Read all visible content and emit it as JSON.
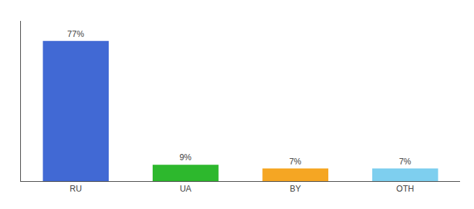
{
  "chart_data": {
    "type": "bar",
    "categories": [
      "RU",
      "UA",
      "BY",
      "OTH"
    ],
    "values": [
      77,
      9,
      7,
      7
    ],
    "value_labels": [
      "77%",
      "9%",
      "7%",
      "7%"
    ],
    "colors": [
      "#4169d4",
      "#2db82d",
      "#f5a623",
      "#7ecfef"
    ],
    "ylim": [
      0,
      88
    ],
    "data_labels": true,
    "tick_labels": "x",
    "grid": false
  }
}
